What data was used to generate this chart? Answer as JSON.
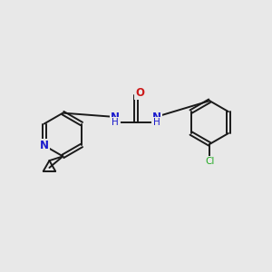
{
  "bg_color": "#e8e8e8",
  "bond_color": "#1a1a1a",
  "N_color": "#1a1acc",
  "O_color": "#cc1a1a",
  "Cl_color": "#22aa22",
  "lw": 1.4,
  "figsize": [
    3.0,
    3.0
  ],
  "dpi": 100,
  "fs": 8.5,
  "fs_small": 7.5,
  "xlim": [
    0,
    10
  ],
  "ylim": [
    0,
    10
  ]
}
